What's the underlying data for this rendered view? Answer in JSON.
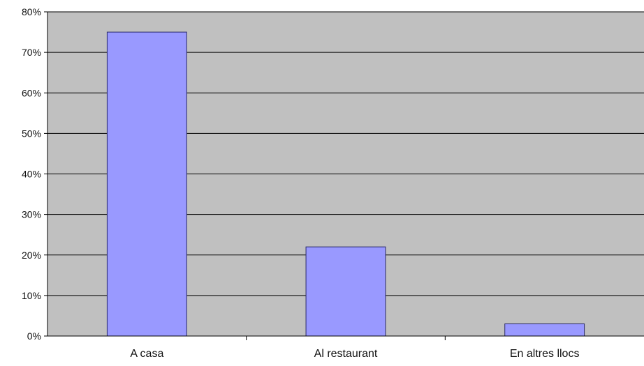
{
  "chart_data": {
    "type": "bar",
    "title": "",
    "xlabel": "",
    "ylabel": "",
    "categories": [
      "A casa",
      "Al restaurant",
      "En altres llocs"
    ],
    "values": [
      75,
      22,
      3
    ],
    "ylim": [
      0,
      80
    ],
    "yticks": [
      0,
      10,
      20,
      30,
      40,
      50,
      60,
      70,
      80
    ],
    "ytick_labels": [
      "0%",
      "10%",
      "20%",
      "30%",
      "40%",
      "50%",
      "60%",
      "70%",
      "80%"
    ],
    "grid": true,
    "legend": "none",
    "colors": {
      "plot_background": "#c0c0c0",
      "bar_fill": "#9999ff",
      "bar_stroke": "#2a2a6a",
      "gridline": "#000000"
    }
  }
}
